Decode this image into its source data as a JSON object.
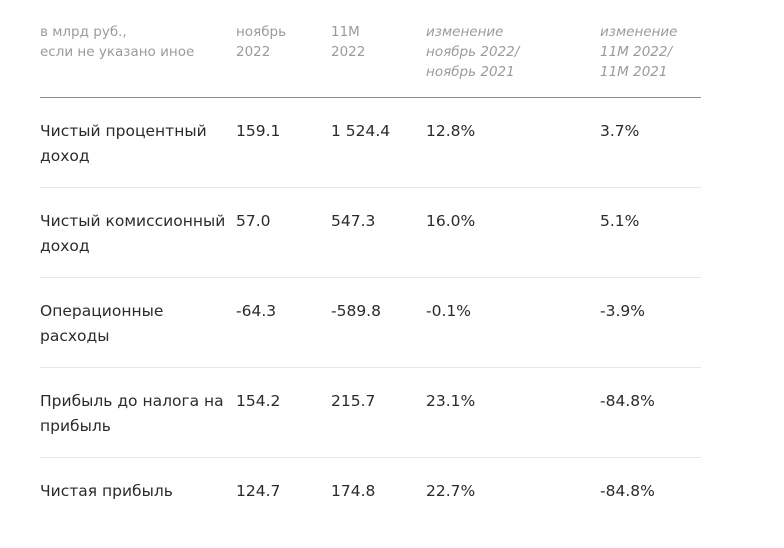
{
  "header": {
    "col0": "в млрд руб.,\nесли не указано иное",
    "col1": "ноябрь\n2022",
    "col2": "11М\n2022",
    "col3": "изменение\nноябрь 2022/\nноябрь 2021",
    "col4": "изменение\n11М 2022/\n11М 2021"
  },
  "rows": [
    {
      "label": "Чистый процентный\nдоход",
      "nov": "159.1",
      "ytd": "1 524.4",
      "chg_m": "12.8%",
      "chg_y": "3.7%"
    },
    {
      "label": "Чистый комиссионный\nдоход",
      "nov": "57.0",
      "ytd": "547.3",
      "chg_m": "16.0%",
      "chg_y": "5.1%"
    },
    {
      "label": "Операционные\nрасходы",
      "nov": "-64.3",
      "ytd": "-589.8",
      "chg_m": "-0.1%",
      "chg_y": "-3.9%"
    },
    {
      "label": "Прибыль до налога на\nприбыль",
      "nov": "154.2",
      "ytd": "215.7",
      "chg_m": "23.1%",
      "chg_y": "-84.8%"
    },
    {
      "label": "Чистая прибыль",
      "nov": "124.7",
      "ytd": "174.8",
      "chg_m": "22.7%",
      "chg_y": "-84.8%"
    }
  ]
}
